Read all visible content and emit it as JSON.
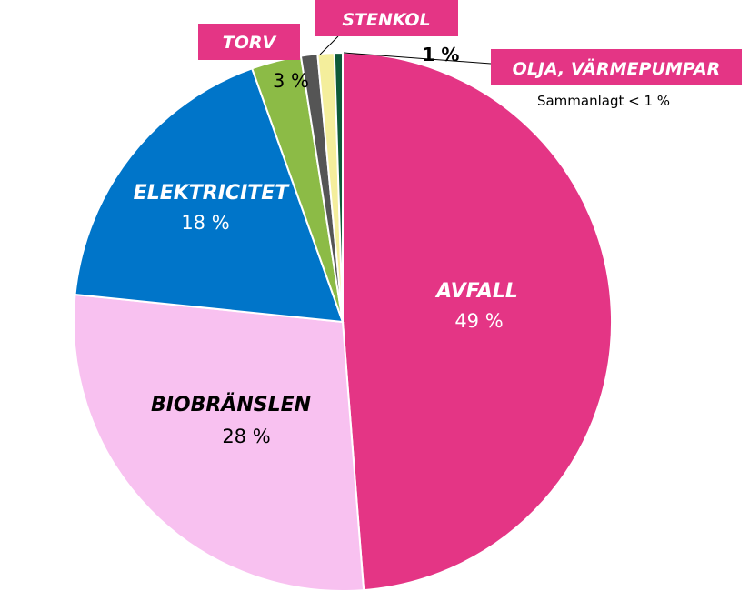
{
  "chart_data": {
    "type": "pie",
    "slices": [
      {
        "label": "AVFALL",
        "value": 49,
        "value_label": "49 %",
        "color": "#e43585"
      },
      {
        "label": "BIOBRÄNSLEN",
        "value": 28,
        "value_label": "28 %",
        "color": "#f8c1f0"
      },
      {
        "label": "ELEKTRICITET",
        "value": 18,
        "value_label": "18 %",
        "color": "#0075c9"
      },
      {
        "label": "TORV",
        "value": 3,
        "value_label": "3 %",
        "color": "#8cbb46"
      },
      {
        "label": "STENKOL",
        "value": 1,
        "value_label": "1 %",
        "color": "#555555"
      },
      {
        "label": "OLJA, VÄRMEPUMPAR",
        "value": 1,
        "value_label": "Sammanlagt < 1 %",
        "color": "#f4ee9c"
      },
      {
        "label": "",
        "value": 0.5,
        "value_label": "",
        "color": "#0d5a38"
      }
    ],
    "title": "",
    "legend": "none"
  },
  "colors": {
    "label_box": "#e43585",
    "label_box_text": "#ffffff",
    "slice_edge": "#ffffff"
  }
}
